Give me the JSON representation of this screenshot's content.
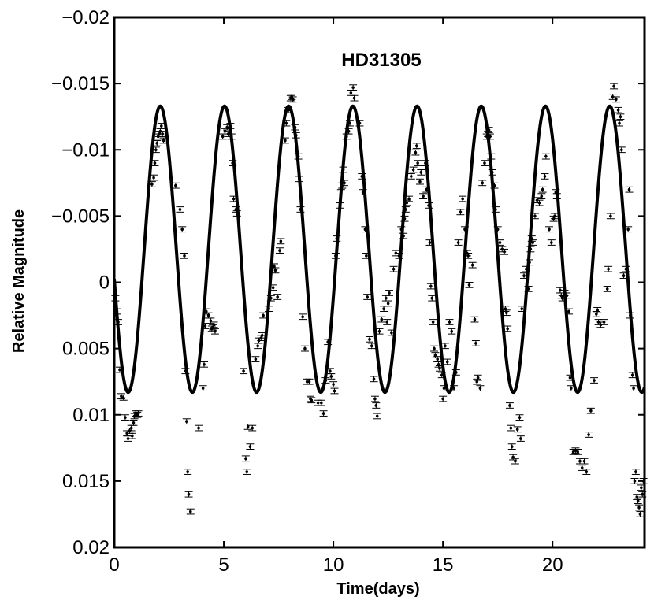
{
  "chart_data": {
    "type": "scatter",
    "title": "HD31305",
    "xlabel": "Time(days)",
    "ylabel": "Relative Magnitude",
    "xlim": [
      0,
      24.2
    ],
    "ylim": [
      -0.02,
      0.02
    ],
    "y_reversed": true,
    "grid": false,
    "legend": "none",
    "x_ticks": [
      0,
      5,
      10,
      15,
      20
    ],
    "x_tick_labels": [
      "0",
      "5",
      "10",
      "15",
      "20"
    ],
    "y_ticks": [
      -0.02,
      -0.015,
      -0.01,
      -0.005,
      0,
      0.005,
      0.01,
      0.015,
      0.02
    ],
    "y_tick_labels": [
      "−0.02",
      "−0.015",
      "−0.01",
      "−0.005",
      "0",
      "0.005",
      "0.01",
      "0.015",
      "0.02"
    ],
    "series": [
      {
        "kind": "points_with_errorbars",
        "error": 0.0002,
        "points": [
          [
            0.05,
            0.0012
          ],
          [
            0.12,
            0.0022
          ],
          [
            0.18,
            0.003
          ],
          [
            0.25,
            0.0066
          ],
          [
            0.32,
            0.0086
          ],
          [
            0.42,
            0.0087
          ],
          [
            0.5,
            0.0102
          ],
          [
            0.58,
            0.0114
          ],
          [
            0.63,
            0.0118
          ],
          [
            0.7,
            0.0112
          ],
          [
            0.78,
            0.011
          ],
          [
            0.82,
            0.0116
          ],
          [
            0.88,
            0.0106
          ],
          [
            0.92,
            0.0101
          ],
          [
            0.98,
            0.0099
          ],
          [
            1.05,
            0.01
          ],
          [
            1.1,
            0.0099
          ],
          [
            1.72,
            -0.0074
          ],
          [
            1.8,
            -0.0079
          ],
          [
            1.85,
            -0.009
          ],
          [
            1.9,
            -0.01
          ],
          [
            1.95,
            -0.0105
          ],
          [
            2.0,
            -0.011
          ],
          [
            2.05,
            -0.0112
          ],
          [
            2.1,
            -0.0114
          ],
          [
            2.15,
            -0.0118
          ],
          [
            2.2,
            -0.0112
          ],
          [
            2.25,
            -0.0107
          ],
          [
            2.8,
            -0.0073
          ],
          [
            3.0,
            -0.0055
          ],
          [
            3.1,
            -0.004
          ],
          [
            3.2,
            -0.002
          ],
          [
            3.25,
            0.0067
          ],
          [
            3.3,
            0.0105
          ],
          [
            3.35,
            0.0143
          ],
          [
            3.4,
            0.016
          ],
          [
            3.48,
            0.0173
          ],
          [
            3.85,
            0.011
          ],
          [
            4.05,
            0.008
          ],
          [
            4.1,
            0.0062
          ],
          [
            4.15,
            0.0033
          ],
          [
            4.2,
            0.0022
          ],
          [
            4.3,
            0.0025
          ],
          [
            4.4,
            0.0029
          ],
          [
            4.45,
            0.0035
          ],
          [
            4.5,
            0.0034
          ],
          [
            4.55,
            0.0032
          ],
          [
            4.6,
            0.0037
          ],
          [
            4.95,
            -0.011
          ],
          [
            5.05,
            -0.0114
          ],
          [
            5.15,
            -0.0117
          ],
          [
            5.2,
            -0.0112
          ],
          [
            5.3,
            -0.0118
          ],
          [
            5.35,
            -0.011
          ],
          [
            5.4,
            -0.009
          ],
          [
            5.45,
            -0.0063
          ],
          [
            5.55,
            -0.0055
          ],
          [
            5.6,
            -0.0052
          ],
          [
            5.9,
            0.0067
          ],
          [
            6.0,
            0.0133
          ],
          [
            6.05,
            0.0143
          ],
          [
            6.1,
            0.0109
          ],
          [
            6.2,
            0.0124
          ],
          [
            6.3,
            0.011
          ],
          [
            6.45,
            0.0058
          ],
          [
            6.55,
            0.0048
          ],
          [
            6.6,
            0.0044
          ],
          [
            6.7,
            0.0042
          ],
          [
            6.75,
            0.004
          ],
          [
            6.8,
            0.0025
          ],
          [
            7.05,
            0.002
          ],
          [
            7.15,
            0.0012
          ],
          [
            7.25,
            0.0004
          ],
          [
            7.3,
            -0.0012
          ],
          [
            7.35,
            -0.0009
          ],
          [
            7.45,
            0.0011
          ],
          [
            7.55,
            -0.0024
          ],
          [
            7.6,
            -0.0031
          ],
          [
            7.8,
            -0.0107
          ],
          [
            7.85,
            -0.012
          ],
          [
            7.95,
            -0.013
          ],
          [
            8.05,
            -0.0139
          ],
          [
            8.1,
            -0.014
          ],
          [
            8.15,
            -0.0138
          ],
          [
            8.25,
            -0.0117
          ],
          [
            8.3,
            -0.0111
          ],
          [
            8.4,
            -0.0095
          ],
          [
            8.45,
            -0.0078
          ],
          [
            8.5,
            -0.0055
          ],
          [
            8.6,
            0.0026
          ],
          [
            8.7,
            0.005
          ],
          [
            8.8,
            0.0075
          ],
          [
            8.9,
            0.0075
          ],
          [
            8.95,
            0.0088
          ],
          [
            9.0,
            0.0089
          ],
          [
            9.3,
            0.0091
          ],
          [
            9.45,
            0.0091
          ],
          [
            9.55,
            0.0099
          ],
          [
            9.65,
            0.0074
          ],
          [
            9.75,
            0.0045
          ],
          [
            9.85,
            0.0067
          ],
          [
            9.9,
            0.0071
          ],
          [
            10.0,
            0.0077
          ],
          [
            10.05,
            0.0082
          ],
          [
            10.1,
            -0.002
          ],
          [
            10.15,
            -0.0033
          ],
          [
            10.3,
            -0.0058
          ],
          [
            10.35,
            -0.0068
          ],
          [
            10.4,
            -0.0073
          ],
          [
            10.45,
            -0.0085
          ],
          [
            10.5,
            -0.0075
          ],
          [
            10.6,
            -0.011
          ],
          [
            10.7,
            -0.0114
          ],
          [
            10.75,
            -0.012
          ],
          [
            10.8,
            -0.0143
          ],
          [
            10.9,
            -0.0147
          ],
          [
            10.95,
            -0.0139
          ],
          [
            11.2,
            -0.012
          ],
          [
            11.3,
            -0.008
          ],
          [
            11.35,
            -0.0068
          ],
          [
            11.45,
            -0.004
          ],
          [
            11.5,
            -0.002
          ],
          [
            11.55,
            0.0011
          ],
          [
            11.65,
            0.0043
          ],
          [
            11.75,
            0.0048
          ],
          [
            11.85,
            0.0073
          ],
          [
            11.9,
            0.0088
          ],
          [
            11.95,
            0.0093
          ],
          [
            12.0,
            0.0101
          ],
          [
            12.1,
            0.0037
          ],
          [
            12.2,
            0.0028
          ],
          [
            12.3,
            0.002
          ],
          [
            12.4,
            0.0012
          ],
          [
            12.45,
            0.003
          ],
          [
            12.5,
            0.0016
          ],
          [
            12.55,
            0.0008
          ],
          [
            12.65,
            0.0038
          ],
          [
            12.75,
            -0.001
          ],
          [
            12.85,
            -0.0022
          ],
          [
            13.0,
            -0.002
          ],
          [
            13.1,
            -0.004
          ],
          [
            13.2,
            -0.0035
          ],
          [
            13.25,
            -0.0048
          ],
          [
            13.3,
            -0.0055
          ],
          [
            13.35,
            -0.006
          ],
          [
            13.45,
            -0.0063
          ],
          [
            13.55,
            -0.008
          ],
          [
            13.65,
            -0.0085
          ],
          [
            13.75,
            -0.0098
          ],
          [
            13.8,
            -0.0103
          ],
          [
            13.85,
            -0.009
          ],
          [
            13.95,
            -0.0076
          ],
          [
            14.0,
            -0.0083
          ],
          [
            14.1,
            -0.0065
          ],
          [
            14.2,
            -0.009
          ],
          [
            14.25,
            -0.007
          ],
          [
            14.35,
            -0.0058
          ],
          [
            14.4,
            -0.003
          ],
          [
            14.45,
            0.0003
          ],
          [
            14.5,
            0.0012
          ],
          [
            14.55,
            0.003
          ],
          [
            14.6,
            0.005
          ],
          [
            14.65,
            0.0055
          ],
          [
            14.75,
            0.0058
          ],
          [
            14.8,
            0.0062
          ],
          [
            14.85,
            0.0065
          ],
          [
            14.95,
            0.007
          ],
          [
            15.0,
            0.0088
          ],
          [
            15.05,
            0.008
          ],
          [
            15.1,
            0.0048
          ],
          [
            15.2,
            0.006
          ],
          [
            15.3,
            0.003
          ],
          [
            15.4,
            0.0037
          ],
          [
            15.5,
            0.008
          ],
          [
            15.6,
            0.0068
          ],
          [
            15.7,
            -0.003
          ],
          [
            15.8,
            -0.0053
          ],
          [
            15.9,
            -0.0063
          ],
          [
            16.0,
            -0.004
          ],
          [
            16.1,
            -0.0022
          ],
          [
            16.15,
            -0.002
          ],
          [
            16.2,
            0.0002
          ],
          [
            16.35,
            -0.0013
          ],
          [
            16.45,
            0.0028
          ],
          [
            16.5,
            0.0046
          ],
          [
            16.55,
            0.0075
          ],
          [
            16.6,
            0.0072
          ],
          [
            16.7,
            0.008
          ],
          [
            16.8,
            -0.0075
          ],
          [
            16.9,
            -0.009
          ],
          [
            17.0,
            -0.011
          ],
          [
            17.05,
            -0.0112
          ],
          [
            17.1,
            -0.0115
          ],
          [
            17.15,
            -0.011
          ],
          [
            17.2,
            -0.0095
          ],
          [
            17.25,
            -0.0083
          ],
          [
            17.35,
            -0.0073
          ],
          [
            17.4,
            -0.0055
          ],
          [
            17.5,
            -0.004
          ],
          [
            17.6,
            -0.003
          ],
          [
            17.7,
            -0.0025
          ],
          [
            17.8,
            -0.0023
          ],
          [
            17.85,
            0.002
          ],
          [
            17.9,
            0.0023
          ],
          [
            17.95,
            0.0035
          ],
          [
            18.05,
            0.0093
          ],
          [
            18.1,
            0.011
          ],
          [
            18.15,
            0.0124
          ],
          [
            18.2,
            0.0132
          ],
          [
            18.3,
            0.0135
          ],
          [
            18.4,
            0.0111
          ],
          [
            18.5,
            0.0102
          ],
          [
            18.55,
            0.0118
          ],
          [
            18.6,
            0.002
          ],
          [
            18.7,
            -0.0005
          ],
          [
            18.8,
            -0.001
          ],
          [
            18.9,
            0.0005
          ],
          [
            18.95,
            -0.0015
          ],
          [
            19.0,
            -0.0025
          ],
          [
            19.05,
            -0.0033
          ],
          [
            19.1,
            -0.003
          ],
          [
            19.2,
            -0.005
          ],
          [
            19.3,
            -0.0062
          ],
          [
            19.4,
            -0.006
          ],
          [
            19.5,
            -0.0065
          ],
          [
            19.55,
            -0.007
          ],
          [
            19.65,
            -0.008
          ],
          [
            19.7,
            -0.0095
          ],
          [
            19.85,
            -0.004
          ],
          [
            19.95,
            -0.003
          ],
          [
            20.05,
            -0.0048
          ],
          [
            20.1,
            -0.005
          ],
          [
            20.15,
            -0.0068
          ],
          [
            20.2,
            -0.0065
          ],
          [
            20.35,
            0.0006
          ],
          [
            20.4,
            0.001
          ],
          [
            20.45,
            0.0012
          ],
          [
            20.55,
            0.0008
          ],
          [
            20.65,
            0.001
          ],
          [
            20.75,
            0.0022
          ],
          [
            20.8,
            0.0072
          ],
          [
            20.85,
            0.008
          ],
          [
            20.95,
            0.0128
          ],
          [
            21.05,
            0.0127
          ],
          [
            21.15,
            0.0128
          ],
          [
            21.25,
            0.0135
          ],
          [
            21.35,
            0.014
          ],
          [
            21.45,
            0.0135
          ],
          [
            21.55,
            0.0143
          ],
          [
            21.65,
            0.0115
          ],
          [
            21.75,
            0.0097
          ],
          [
            21.9,
            0.0074
          ],
          [
            22.0,
            0.0024
          ],
          [
            22.05,
            0.0021
          ],
          [
            22.1,
            0.003
          ],
          [
            22.2,
            0.0032
          ],
          [
            22.35,
            0.003
          ],
          [
            22.5,
            0.0005
          ],
          [
            22.55,
            -0.001
          ],
          [
            22.65,
            -0.005
          ],
          [
            22.75,
            -0.014
          ],
          [
            22.8,
            -0.0148
          ],
          [
            22.9,
            -0.0138
          ],
          [
            23.0,
            -0.013
          ],
          [
            23.05,
            -0.012
          ],
          [
            23.1,
            -0.0125
          ],
          [
            23.15,
            -0.01
          ],
          [
            23.25,
            -0.0005
          ],
          [
            23.35,
            -0.001
          ],
          [
            23.45,
            -0.004
          ],
          [
            23.5,
            -0.007
          ],
          [
            23.55,
            0.0025
          ],
          [
            23.65,
            0.007
          ],
          [
            23.7,
            0.008
          ],
          [
            23.75,
            0.015
          ],
          [
            23.8,
            0.0143
          ],
          [
            23.85,
            0.0162
          ],
          [
            23.9,
            0.0165
          ],
          [
            23.95,
            0.017
          ],
          [
            24.0,
            0.0175
          ],
          [
            24.05,
            0.0155
          ],
          [
            24.1,
            0.016
          ],
          [
            24.15,
            0.015
          ]
        ]
      },
      {
        "kind": "model_curve",
        "period_days": 2.93,
        "amplitude": 0.0108,
        "offset": -0.0025,
        "phase_peak_day": 2.1
      }
    ]
  }
}
